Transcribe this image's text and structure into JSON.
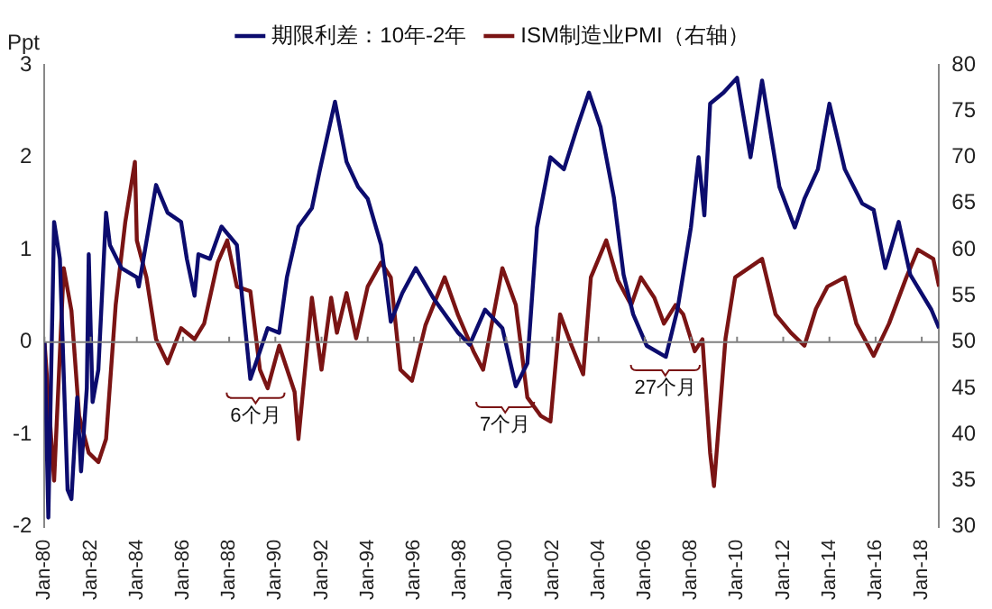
{
  "chart_data": {
    "type": "line",
    "ylabel": "Ppt",
    "legend": "top",
    "xlim": [
      "1980-01",
      "2018-10"
    ],
    "xticks": [
      {
        "value": "1980-01",
        "label": "Jan-80"
      },
      {
        "value": "1982-01",
        "label": "Jan-82"
      },
      {
        "value": "1984-01",
        "label": "Jan-84"
      },
      {
        "value": "1986-01",
        "label": "Jan-86"
      },
      {
        "value": "1988-01",
        "label": "Jan-88"
      },
      {
        "value": "1990-01",
        "label": "Jan-90"
      },
      {
        "value": "1992-01",
        "label": "Jan-92"
      },
      {
        "value": "1994-01",
        "label": "Jan-94"
      },
      {
        "value": "1996-01",
        "label": "Jan-96"
      },
      {
        "value": "1998-01",
        "label": "Jan-98"
      },
      {
        "value": "2000-01",
        "label": "Jan-00"
      },
      {
        "value": "2002-01",
        "label": "Jan-02"
      },
      {
        "value": "2004-01",
        "label": "Jan-04"
      },
      {
        "value": "2006-01",
        "label": "Jan-06"
      },
      {
        "value": "2008-01",
        "label": "Jan-08"
      },
      {
        "value": "2010-01",
        "label": "Jan-10"
      },
      {
        "value": "2012-01",
        "label": "Jan-12"
      },
      {
        "value": "2014-01",
        "label": "Jan-14"
      },
      {
        "value": "2016-01",
        "label": "Jan-16"
      },
      {
        "value": "2018-01",
        "label": "Jan-18"
      }
    ],
    "ylim": [
      -2,
      3
    ],
    "yticks": [
      -2,
      -1,
      0,
      1,
      2,
      3
    ],
    "y2lim": [
      30,
      80
    ],
    "y2ticks": [
      30,
      35,
      40,
      45,
      50,
      55,
      60,
      65,
      70,
      75,
      80
    ],
    "ref_lines": [
      {
        "axis": "y",
        "value": 0,
        "color": "#808080"
      }
    ],
    "series": [
      {
        "name": "期限利差：10年-2年",
        "color": "#0c0c6e",
        "x": [
          "1980-01",
          "1980-03",
          "1980-06",
          "1980-09",
          "1981-01",
          "1981-03",
          "1981-06",
          "1981-08",
          "1981-11",
          "1981-12",
          "1982-02",
          "1982-05",
          "1982-09",
          "1982-11",
          "1983-05",
          "1984-01",
          "1984-02",
          "1984-11",
          "1985-05",
          "1985-12",
          "1986-03",
          "1986-07",
          "1986-09",
          "1987-03",
          "1987-09",
          "1988-05",
          "1988-12",
          "1989-05",
          "1989-09",
          "1990-03",
          "1990-07",
          "1991-01",
          "1991-08",
          "1991-12",
          "1992-08",
          "1993-02",
          "1993-08",
          "1994-01",
          "1994-08",
          "1995-01",
          "1995-07",
          "1996-02",
          "1996-11",
          "1997-12",
          "1998-06",
          "1999-02",
          "1999-11",
          "2000-06",
          "2000-12",
          "2001-05",
          "2001-12",
          "2002-07",
          "2003-02",
          "2003-08",
          "2004-02",
          "2004-09",
          "2005-02",
          "2005-07",
          "2006-02",
          "2006-12",
          "2007-06",
          "2008-01",
          "2008-05",
          "2008-08",
          "2008-11",
          "2009-06",
          "2010-01",
          "2010-08",
          "2011-02",
          "2011-11",
          "2012-07",
          "2012-12",
          "2013-07",
          "2014-01",
          "2014-09",
          "2015-06",
          "2015-12",
          "2016-06",
          "2017-01",
          "2017-07",
          "2018-06",
          "2018-10"
        ],
        "values": [
          0.0,
          -1.9,
          1.3,
          0.9,
          -1.6,
          -1.7,
          -0.6,
          -1.4,
          -0.5,
          0.95,
          -0.65,
          -0.3,
          1.4,
          1.05,
          0.8,
          0.7,
          0.6,
          1.7,
          1.4,
          1.3,
          0.9,
          0.5,
          0.95,
          0.9,
          1.25,
          1.05,
          -0.4,
          -0.1,
          0.15,
          0.1,
          0.7,
          1.25,
          1.45,
          1.85,
          2.6,
          1.95,
          1.68,
          1.55,
          1.05,
          0.22,
          0.53,
          0.8,
          0.48,
          0.1,
          -0.03,
          0.35,
          0.15,
          -0.48,
          -0.23,
          1.24,
          2.0,
          1.87,
          2.33,
          2.7,
          2.33,
          1.56,
          0.73,
          0.3,
          -0.04,
          -0.16,
          0.35,
          1.24,
          2.0,
          1.37,
          2.58,
          2.7,
          2.86,
          2.0,
          2.83,
          1.68,
          1.24,
          1.55,
          1.87,
          2.58,
          1.87,
          1.5,
          1.43,
          0.8,
          1.3,
          0.73,
          0.35,
          0.15
        ]
      },
      {
        "name": "ISM制造业PMI（右轴）",
        "color": "#7a1414",
        "axis": "y2",
        "x": [
          "1980-01",
          "1980-06",
          "1980-11",
          "1981-03",
          "1981-07",
          "1981-12",
          "1982-05",
          "1982-09",
          "1983-02",
          "1983-07",
          "1983-12",
          "1984-01",
          "1984-06",
          "1984-11",
          "1985-05",
          "1985-12",
          "1986-07",
          "1986-12",
          "1987-07",
          "1987-12",
          "1988-05",
          "1988-12",
          "1989-05",
          "1989-09",
          "1990-03",
          "1990-11",
          "1991-01",
          "1991-08",
          "1992-01",
          "1992-06",
          "1992-09",
          "1993-02",
          "1993-07",
          "1994-01",
          "1994-08",
          "1995-01",
          "1995-06",
          "1995-12",
          "1996-07",
          "1997-05",
          "1997-12",
          "1998-08",
          "1999-01",
          "1999-11",
          "2000-06",
          "2000-12",
          "2001-07",
          "2001-12",
          "2002-05",
          "2002-11",
          "2003-05",
          "2003-09",
          "2004-05",
          "2004-11",
          "2005-06",
          "2005-11",
          "2006-06",
          "2006-11",
          "2007-05",
          "2007-09",
          "2008-03",
          "2008-07",
          "2008-11",
          "2009-01",
          "2009-07",
          "2009-12",
          "2010-07",
          "2011-02",
          "2011-09",
          "2012-05",
          "2012-12",
          "2013-06",
          "2013-12",
          "2014-09",
          "2015-03",
          "2015-12",
          "2016-08",
          "2017-05",
          "2017-11",
          "2018-07",
          "2018-10"
        ],
        "values": [
          50,
          35,
          58,
          53.4,
          42,
          38,
          37,
          39.5,
          54,
          63,
          69.5,
          61,
          57,
          50.3,
          47.7,
          51.5,
          50.3,
          52,
          58.6,
          61,
          56,
          55.5,
          47,
          45,
          49.6,
          44.6,
          39.5,
          54.8,
          47,
          54.8,
          51,
          55.3,
          50.4,
          56,
          58.6,
          57,
          47,
          45.8,
          51.8,
          57,
          52.9,
          49,
          47,
          58,
          54,
          44,
          42,
          41.4,
          53,
          49.6,
          46.5,
          57,
          61,
          56.7,
          54,
          57,
          54.8,
          52,
          54,
          53,
          49,
          50.3,
          38,
          34.4,
          50.4,
          57,
          58,
          59,
          53,
          51,
          49.6,
          53.6,
          56,
          57,
          52,
          48.5,
          52,
          57,
          60,
          59,
          56
        ]
      }
    ],
    "annotations": [
      "6个月",
      "7个月",
      "27个月"
    ]
  }
}
